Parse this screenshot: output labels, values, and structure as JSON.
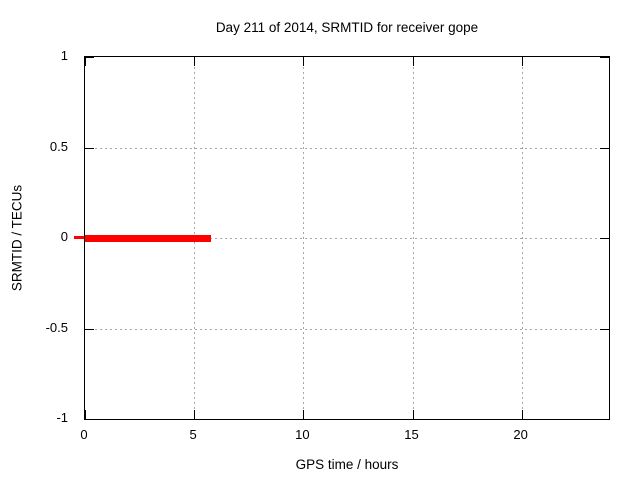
{
  "chart_data": {
    "type": "line",
    "title": "Day 211 of 2014, SRMTID for receiver gope",
    "xlabel": "GPS time / hours",
    "ylabel": "SRMTID / TECUs",
    "xlim": [
      0,
      24
    ],
    "ylim": [
      -1,
      1
    ],
    "xticks": [
      0,
      5,
      10,
      15,
      20
    ],
    "yticks": [
      -1,
      -0.5,
      0,
      0.5,
      1
    ],
    "grid": "dotted",
    "grid_color": "#a6a6a6",
    "border_color": "#000000",
    "background": "#ffffff",
    "legend": "none",
    "series": [
      {
        "name": "SRMTID",
        "color": "#ff0000",
        "line_width": 7,
        "x": [
          0,
          5.75
        ],
        "y": [
          0,
          0
        ]
      }
    ]
  }
}
